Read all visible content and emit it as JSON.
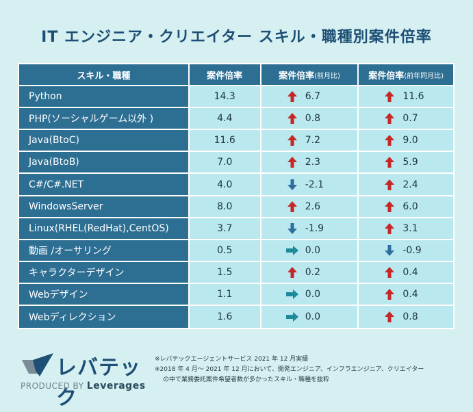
{
  "title": "IT エンジニア・クリエイター スキル・職種別案件倍率",
  "header": {
    "col1": "スキル・職種",
    "col2": "案件倍率",
    "col3_main": "案件倍率",
    "col3_sub": "(前月比)",
    "col4_main": "案件倍率",
    "col4_sub": "(前年同月比)"
  },
  "colors": {
    "up": "#c62828",
    "down": "#2f6fa0",
    "flat": "#1e8a9a"
  },
  "chart_data": {
    "type": "table",
    "title": "IT エンジニア・クリエイター スキル・職種別案件倍率",
    "columns": [
      "スキル・職種",
      "案件倍率",
      "案件倍率(前月比)",
      "案件倍率(前年同月比)"
    ],
    "rows": [
      {
        "skill": "Python",
        "ratio": "14.3",
        "mom": "6.7",
        "mom_dir": "up",
        "yoy": "11.6",
        "yoy_dir": "up"
      },
      {
        "skill": "PHP(ソーシャルゲーム以外 )",
        "ratio": "4.4",
        "mom": "0.8",
        "mom_dir": "up",
        "yoy": "0.7",
        "yoy_dir": "up"
      },
      {
        "skill": "Java(BtoC)",
        "ratio": "11.6",
        "mom": "7.2",
        "mom_dir": "up",
        "yoy": "9.0",
        "yoy_dir": "up"
      },
      {
        "skill": "Java(BtoB)",
        "ratio": "7.0",
        "mom": "2.3",
        "mom_dir": "up",
        "yoy": "5.9",
        "yoy_dir": "up"
      },
      {
        "skill": "C#/C#.NET",
        "ratio": "4.0",
        "mom": "-2.1",
        "mom_dir": "down",
        "yoy": "2.4",
        "yoy_dir": "up"
      },
      {
        "skill": "WindowsServer",
        "ratio": "8.0",
        "mom": "2.6",
        "mom_dir": "up",
        "yoy": "6.0",
        "yoy_dir": "up"
      },
      {
        "skill": "Linux(RHEL(RedHat),CentOS)",
        "ratio": "3.7",
        "mom": "-1.9",
        "mom_dir": "down",
        "yoy": "3.1",
        "yoy_dir": "up"
      },
      {
        "skill": "動画 /オーサリング",
        "ratio": "0.5",
        "mom": "0.0",
        "mom_dir": "flat",
        "yoy": "-0.9",
        "yoy_dir": "down"
      },
      {
        "skill": "キャラクターデザイン",
        "ratio": "1.5",
        "mom": "0.2",
        "mom_dir": "up",
        "yoy": "0.4",
        "yoy_dir": "up"
      },
      {
        "skill": "Webデザイン",
        "ratio": "1.1",
        "mom": "0.0",
        "mom_dir": "flat",
        "yoy": "0.4",
        "yoy_dir": "up"
      },
      {
        "skill": "Webディレクション",
        "ratio": "1.6",
        "mom": "0.0",
        "mom_dir": "flat",
        "yoy": "0.8",
        "yoy_dir": "up"
      }
    ]
  },
  "logo": {
    "name": "レバテック",
    "produced_by": "PRODUCED BY",
    "brand": "Leverages"
  },
  "notes": {
    "line1": "※レバテックエージェントサービス 2021 年 12 月実績",
    "line2": "※2018 年 4 月～ 2021 年 12 月において、開発エンジニア、インフラエンジニア、クリエイター",
    "line3": "の中で業務委託案件希望者数が多かったスキル・職種を抜粋"
  }
}
